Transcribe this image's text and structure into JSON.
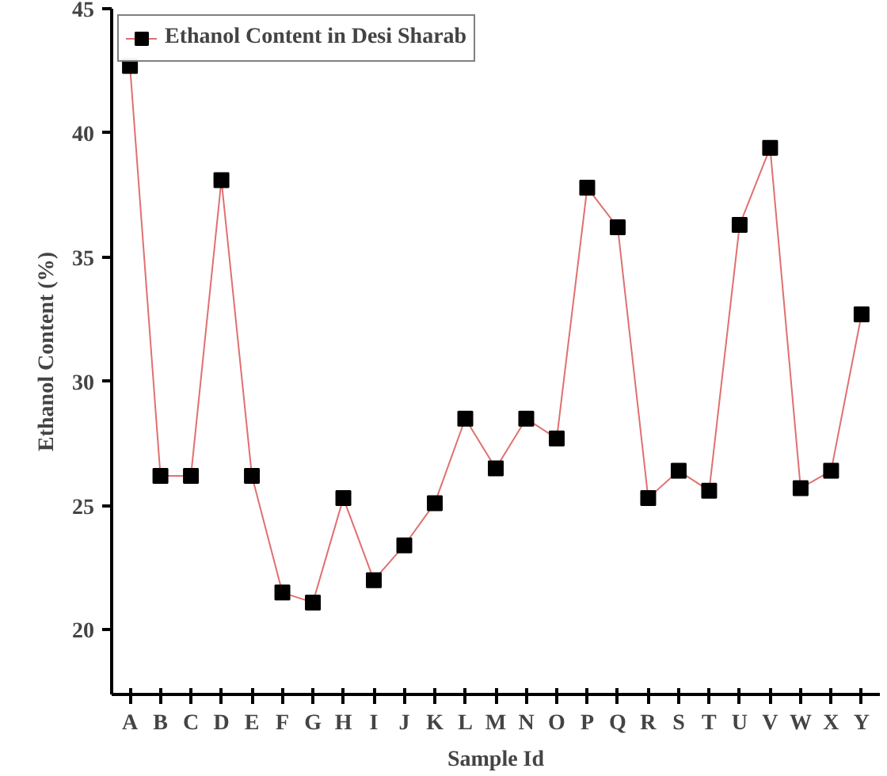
{
  "chart_data": {
    "type": "line",
    "xlabel": "Sample Id",
    "ylabel": "Ethanol Content (%)",
    "categories": [
      "A",
      "B",
      "C",
      "D",
      "E",
      "F",
      "G",
      "H",
      "I",
      "J",
      "K",
      "L",
      "M",
      "N",
      "O",
      "P",
      "Q",
      "R",
      "S",
      "T",
      "U",
      "V",
      "W",
      "X",
      "Y"
    ],
    "series": [
      {
        "name": "Ethanol Content in Desi Sharab",
        "color": "#e07070",
        "values": [
          42.7,
          26.2,
          26.2,
          38.1,
          26.2,
          21.5,
          21.1,
          25.3,
          22.0,
          23.4,
          25.1,
          28.5,
          26.5,
          28.5,
          27.7,
          37.8,
          36.2,
          25.3,
          26.4,
          25.6,
          36.3,
          39.4,
          25.7,
          26.4,
          32.7
        ]
      }
    ],
    "ylim": [
      17.4,
      45
    ],
    "yticks": [
      20,
      25,
      30,
      35,
      40,
      45
    ],
    "marker": "square",
    "line_style": "solid",
    "grid": false,
    "legend": "top left"
  }
}
